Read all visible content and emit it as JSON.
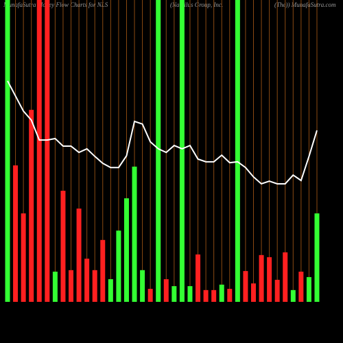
{
  "chart_data": {
    "type": "bar",
    "title_parts": [
      "MunafaSutra Money Flow Charts for NLS",
      "(Nautilus Group, Inc.",
      "(The)) MunafaSutra.com"
    ],
    "ylim": [
      0,
      100
    ],
    "series": [
      {
        "name": "Money Flow",
        "type": "bar",
        "values": [
          100,
          45.2,
          29.3,
          63.6,
          100,
          100,
          10,
          36.8,
          10.5,
          30.9,
          14.3,
          10.5,
          20.5,
          7.5,
          23.6,
          34.3,
          44.8,
          10.5,
          4.3,
          100,
          7.5,
          5.2,
          100,
          5.2,
          15.7,
          3.9,
          3.9,
          5.7,
          4.3,
          100,
          10.2,
          6.1,
          15.5,
          14.8,
          7.3,
          16.4,
          3.9,
          10,
          8.2,
          29.3
        ],
        "colors": [
          "#33ff33",
          "#ff2020",
          "#ff2020",
          "#ff2020",
          "#ff2020",
          "#ff2020",
          "#33ff33",
          "#ff2020",
          "#ff2020",
          "#ff2020",
          "#ff2020",
          "#ff2020",
          "#ff2020",
          "#33ff33",
          "#33ff33",
          "#33ff33",
          "#33ff33",
          "#33ff33",
          "#ff2020",
          "#33ff33",
          "#ff2020",
          "#33ff33",
          "#33ff33",
          "#33ff33",
          "#ff2020",
          "#ff2020",
          "#ff2020",
          "#33ff33",
          "#ff2020",
          "#33ff33",
          "#ff2020",
          "#ff2020",
          "#ff2020",
          "#ff2020",
          "#ff2020",
          "#ff2020",
          "#33ff33",
          "#ff2020",
          "#33ff33",
          "#33ff33"
        ]
      },
      {
        "name": "Price",
        "type": "line",
        "color": "#ffffff",
        "values": [
          73.2,
          68.2,
          63.2,
          60.2,
          53.6,
          53.6,
          54.1,
          51.6,
          51.6,
          49.5,
          50.7,
          48.2,
          45.9,
          44.5,
          44.5,
          48.4,
          59.8,
          58.9,
          53,
          50.7,
          49.5,
          51.8,
          50.7,
          51.8,
          47.3,
          46.4,
          46.4,
          48.6,
          46.1,
          46.4,
          44.5,
          41.4,
          39.1,
          40,
          39.1,
          39.1,
          42,
          40.2,
          48.2,
          56.8
        ]
      }
    ],
    "gridline_color": "#8b4a12"
  }
}
